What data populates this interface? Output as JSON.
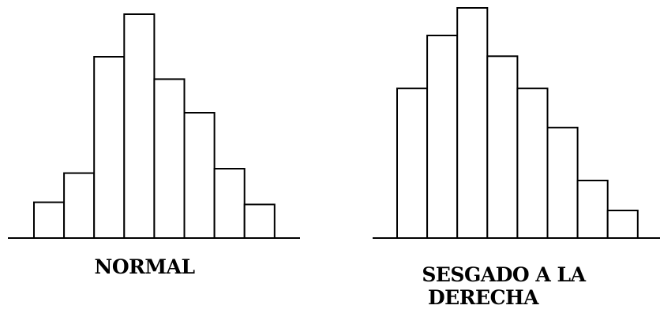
{
  "colors": {
    "bar_fill": "#ffffff",
    "stroke": "#000000",
    "background": "#ffffff"
  },
  "chart_data": [
    {
      "type": "bar",
      "title": "NORMAL",
      "xlabel": "",
      "ylabel": "",
      "grid": false,
      "legend": "none",
      "ylim": [
        0,
        100
      ],
      "values": [
        16,
        29,
        81,
        100,
        71,
        56,
        31,
        15
      ]
    },
    {
      "type": "bar",
      "title": "SESGADO A LA DERECHA",
      "xlabel": "",
      "ylabel": "",
      "grid": false,
      "legend": "none",
      "ylim": [
        0,
        100
      ],
      "values": [
        65,
        88,
        100,
        79,
        65,
        48,
        25,
        12
      ]
    }
  ]
}
